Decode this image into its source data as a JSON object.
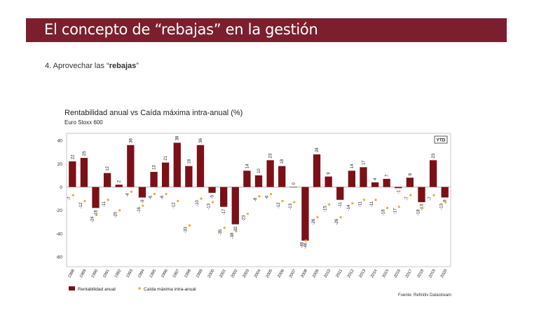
{
  "header": {
    "title": "El concepto de “rebajas” en la gestión"
  },
  "subtitle": {
    "prefix": "4. Aprovechar las “",
    "bold": "rebajas",
    "suffix": "”"
  },
  "colors": {
    "header_bg": "#7b1f2e",
    "bar": "#7b1016",
    "dot": "#f0a830"
  },
  "chart_data": {
    "type": "bar",
    "title": "Rentabilidad anual vs Caída máxima intra-anual (%)",
    "subtitle": "Euro Stoxx 600",
    "ylim": [
      -65,
      45
    ],
    "yticks": [
      40,
      20,
      0,
      -20,
      -40,
      -60
    ],
    "categories": [
      "1988",
      "1989",
      "1990",
      "1991",
      "1992",
      "1993",
      "1994",
      "1995",
      "1996",
      "1997",
      "1998",
      "1999",
      "2000",
      "2001",
      "2002",
      "2003",
      "2004",
      "2005",
      "2006",
      "2007",
      "2008",
      "2009",
      "2010",
      "2011",
      "2012",
      "2013",
      "2014",
      "2015",
      "2016",
      "2017",
      "2018",
      "2019",
      "2020"
    ],
    "series": [
      {
        "name": "Rentabilidad anual",
        "values": [
          22,
          25,
          -18,
          12,
          2,
          36,
          -9,
          13,
          21,
          38,
          18,
          36,
          -5,
          -17,
          -32,
          14,
          10,
          23,
          18,
          0,
          -46,
          28,
          9,
          -11,
          14,
          17,
          4,
          7,
          -1,
          8,
          -13,
          23,
          -9
        ],
        "labels": [
          "22",
          "25",
          "-18",
          "12",
          "2",
          "36",
          "-9",
          "13",
          "21",
          "38",
          "18",
          "36",
          "-5",
          "-17",
          "-32",
          "14",
          "10",
          "23",
          "18",
          "0",
          "-46",
          "28",
          "9",
          "-11",
          "14",
          "17",
          "4",
          "7",
          "-1",
          "8",
          "-13",
          "23",
          "-9"
        ]
      },
      {
        "name": "Caída máxima intra-anual",
        "values": [
          -7,
          -12,
          -24,
          -11,
          -20,
          -4,
          -16,
          -6,
          -6,
          -12,
          -33,
          -10,
          -13,
          -35,
          -38,
          -23,
          -8,
          -6,
          -12,
          -13,
          -46,
          -26,
          -15,
          -26,
          -14,
          -11,
          -11,
          -18,
          -17,
          -7,
          -18,
          -7,
          -13
        ],
        "labels": [
          "-7",
          "-12",
          "-24",
          "-11",
          "-20",
          "-4",
          "-16",
          "-6",
          "-6",
          "-12",
          "-33",
          "-10",
          "-13",
          "-35",
          "-38",
          "-23",
          "-8",
          "-6",
          "-12",
          "-13",
          "-46",
          "-26",
          "-15",
          "-26",
          "-14",
          "-11",
          "-11",
          "-18",
          "-17",
          "-7",
          "-18",
          "-7",
          "-13"
        ]
      }
    ],
    "ytd_label": "YTD",
    "legend": "bottom-left",
    "source": "Fuente: Refinitiv Datastream"
  }
}
